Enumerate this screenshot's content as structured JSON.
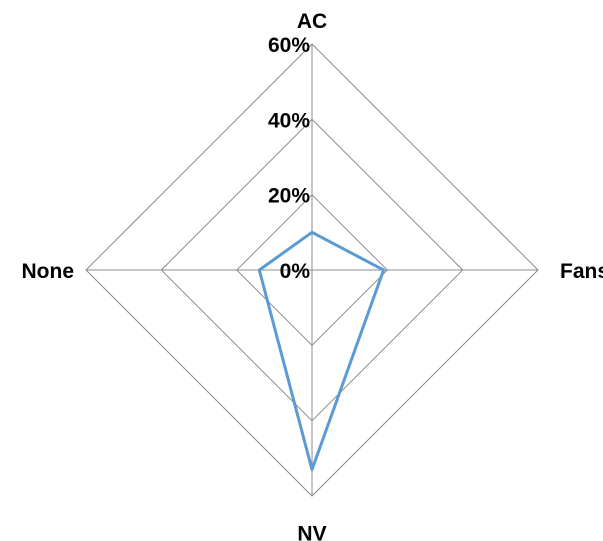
{
  "chart_data": {
    "type": "radar",
    "categories": [
      "AC",
      "Fans",
      "NV",
      "None"
    ],
    "series": [
      {
        "values": [
          0.1,
          0.19,
          0.53,
          0.14
        ],
        "color": "#5b9bd5"
      }
    ],
    "rlim": [
      0,
      0.6
    ],
    "ticks": [
      0,
      0.2,
      0.4,
      0.6
    ],
    "tick_labels": [
      "0%",
      "20%",
      "40%",
      "60%"
    ],
    "grid": true,
    "legend": "none",
    "gridline_color": "#8c8c8c"
  }
}
